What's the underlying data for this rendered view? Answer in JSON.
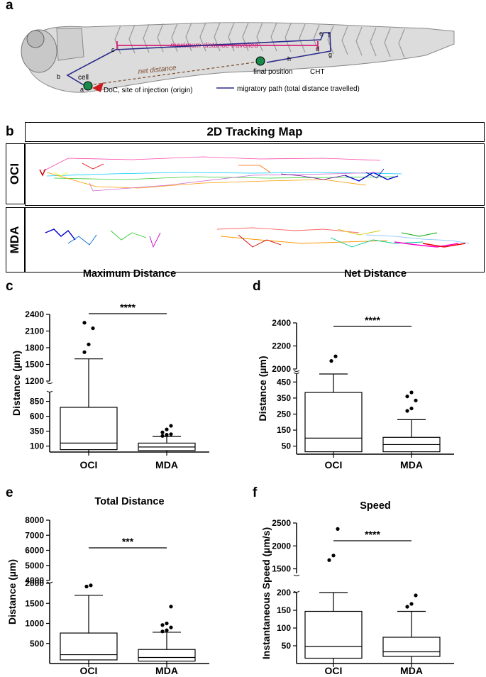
{
  "panel_a": {
    "label": "a",
    "annotations": {
      "max_distance": "maximum distance travelled",
      "net_distance": "net distance",
      "final_position": "final position",
      "cht": "CHT",
      "cell": "cell",
      "doc": "DoC, site of injection (origin)",
      "migratory_path": "migratory path (total distance travelled)"
    },
    "points": [
      "a",
      "b",
      "c",
      "d",
      "e",
      "f",
      "g",
      "h"
    ]
  },
  "panel_b": {
    "label": "b",
    "title": "2D Tracking Map",
    "rows": [
      {
        "label": "OCI"
      },
      {
        "label": "MDA"
      }
    ]
  },
  "chart_data": [
    {
      "panel": "c",
      "type": "box",
      "title": "Maximum Distance",
      "ylabel": "Distance (µm)",
      "categories": [
        "OCI",
        "MDA"
      ],
      "y_ticks_upper": [
        "2400",
        "2100",
        "1800",
        "1500",
        "1200"
      ],
      "y_ticks_lower": [
        "850",
        "600",
        "350",
        "100"
      ],
      "significance": "****",
      "boxes": [
        {
          "name": "OCI",
          "whisker_low": 0,
          "q1": 40,
          "median": 150,
          "q3": 750,
          "whisker_high": 1600,
          "outliers": [
            1720,
            1860,
            2150,
            2250
          ]
        },
        {
          "name": "MDA",
          "whisker_low": 0,
          "q1": 25,
          "median": 85,
          "q3": 150,
          "whisker_high": 260,
          "outliers": [
            270,
            290,
            300,
            330,
            380,
            440
          ]
        }
      ]
    },
    {
      "panel": "d",
      "type": "box",
      "title": "Net Distance",
      "ylabel": "Distance (µm)",
      "categories": [
        "OCI",
        "MDA"
      ],
      "y_ticks_upper": [
        "2400",
        "2200",
        "2000"
      ],
      "y_ticks_lower": [
        "450",
        "350",
        "250",
        "150",
        "50"
      ],
      "significance": "****",
      "boxes": [
        {
          "name": "OCI",
          "whisker_low": 0,
          "q1": 15,
          "median": 100,
          "q3": 385,
          "whisker_high": 530,
          "outliers": [
            2070,
            2110
          ]
        },
        {
          "name": "MDA",
          "whisker_low": 0,
          "q1": 15,
          "median": 60,
          "q3": 105,
          "whisker_high": 215,
          "outliers": [
            270,
            285,
            335,
            360,
            385
          ]
        }
      ]
    },
    {
      "panel": "e",
      "type": "box",
      "title": "Total Distance",
      "ylabel": "Distance (µm)",
      "categories": [
        "OCI",
        "MDA"
      ],
      "y_ticks_upper": [
        "8000",
        "7000",
        "6000",
        "5000",
        "4000"
      ],
      "y_ticks_lower": [
        "2000",
        "1500",
        "1000",
        "500"
      ],
      "significance": "***",
      "boxes": [
        {
          "name": "OCI",
          "whisker_low": 0,
          "q1": 90,
          "median": 220,
          "q3": 760,
          "whisker_high": 1700,
          "outliers": [
            1920,
            1950
          ]
        },
        {
          "name": "MDA",
          "whisker_low": 0,
          "q1": 60,
          "median": 150,
          "q3": 350,
          "whisker_high": 780,
          "outliers": [
            800,
            830,
            900,
            960,
            1000,
            1420
          ]
        }
      ]
    },
    {
      "panel": "f",
      "type": "box",
      "title": "Speed",
      "ylabel": "Instantaneous Speed (µm/s)",
      "categories": [
        "OCI",
        "MDA"
      ],
      "y_ticks_upper": [
        "2500",
        "2000",
        "1500"
      ],
      "y_ticks_lower": [
        "200",
        "150",
        "100",
        "50"
      ],
      "significance": "****",
      "boxes": [
        {
          "name": "OCI",
          "whisker_low": 0,
          "q1": 15,
          "median": 48,
          "q3": 147,
          "whisker_high": 200,
          "outliers": [
            1690,
            1790,
            2370
          ]
        },
        {
          "name": "MDA",
          "whisker_low": 0,
          "q1": 20,
          "median": 33,
          "q3": 74,
          "whisker_high": 147,
          "outliers": [
            160,
            168,
            192
          ]
        }
      ]
    }
  ]
}
